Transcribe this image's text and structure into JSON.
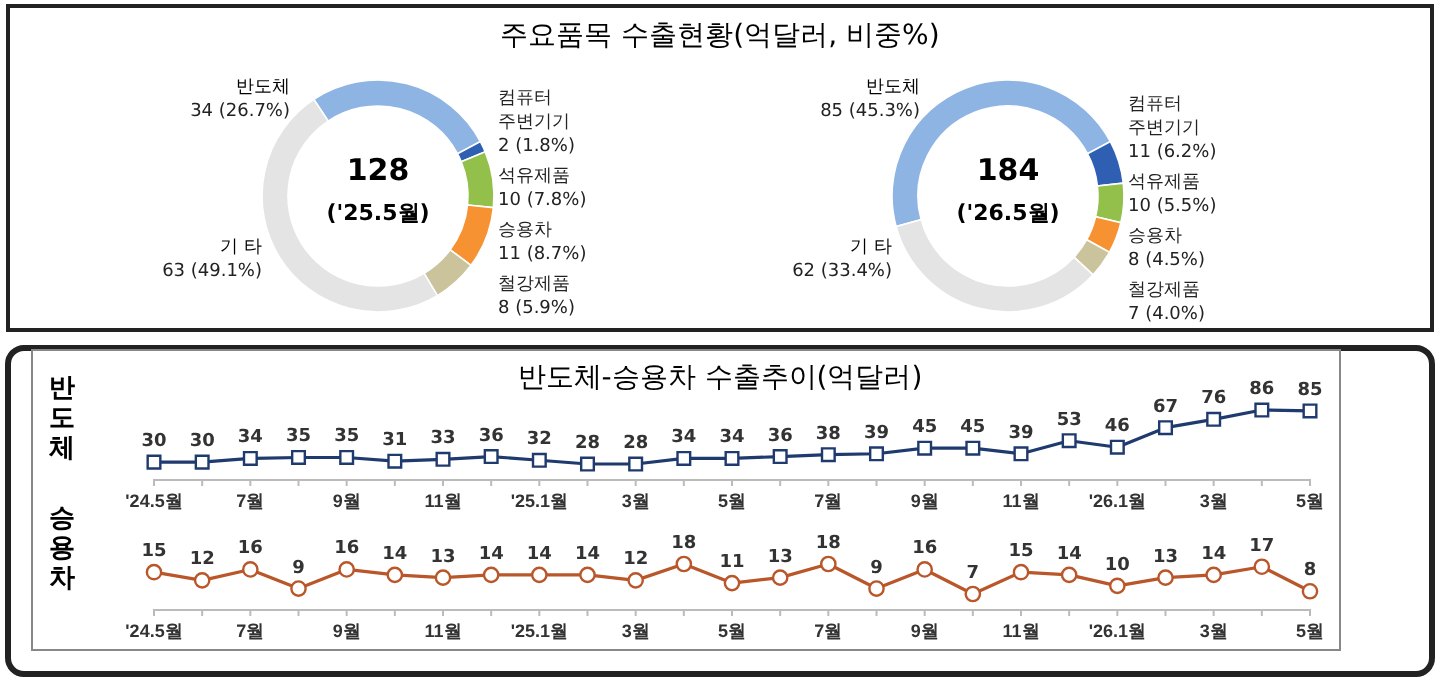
{
  "chart_data": [
    {
      "type": "donut",
      "title": "주요품목  수출현황(억달러, 비중%)",
      "categories": [
        "반도체",
        "컴퓨터 주변기기",
        "석유제품",
        "승용차",
        "철강제품",
        "기 타"
      ],
      "values": [
        34,
        2,
        10,
        11,
        8,
        63
      ],
      "value_labels": [
        "34 (26.7%)",
        "2 (1.8%)",
        "10 (7.8%)",
        "11 (8.7%)",
        "8 (5.9%)",
        "63 (49.1%)"
      ],
      "colors": [
        "#8db4e2",
        "#2f5fb3",
        "#92c04a",
        "#f79232",
        "#cbc39b",
        "#e4e4e4"
      ],
      "annotations": [
        "128",
        "('25.5월)"
      ]
    },
    {
      "type": "donut",
      "categories": [
        "반도체",
        "컴퓨터 주변기기",
        "석유제품",
        "승용차",
        "철강제품",
        "기 타"
      ],
      "values": [
        85,
        11,
        10,
        8,
        7,
        62
      ],
      "value_labels": [
        "85 (45.3%)",
        "11 (6.2%)",
        "10 (5.5%)",
        "8 (4.5%)",
        "7 (4.0%)",
        "62 (33.4%)"
      ],
      "colors": [
        "#8db4e2",
        "#2f5fb3",
        "#92c04a",
        "#f79232",
        "#cbc39b",
        "#e4e4e4"
      ],
      "annotations": [
        "184",
        "('26.5월)"
      ]
    },
    {
      "type": "line",
      "title": "반도체-승용차 수출추이(억달러)",
      "ylabel": "반도체",
      "categories": [
        "'24.5월",
        null,
        "7월",
        null,
        "9월",
        null,
        "11월",
        null,
        "'25.1월",
        null,
        "3월",
        null,
        "5월",
        null,
        "7월",
        null,
        "9월",
        null,
        "11월",
        null,
        "'26.1월",
        null,
        "3월",
        null,
        "5월"
      ],
      "marker": "square",
      "data_labels": true,
      "series": [
        {
          "color": "#1f3a6e",
          "values": [
            30,
            30,
            34,
            35,
            35,
            31,
            33,
            36,
            32,
            28,
            28,
            34,
            34,
            36,
            38,
            39,
            45,
            45,
            39,
            53,
            46,
            67,
            76,
            86,
            85
          ]
        }
      ]
    },
    {
      "type": "line",
      "ylabel": "승용차",
      "categories": [
        "'24.5월",
        null,
        "7월",
        null,
        "9월",
        null,
        "11월",
        null,
        "'25.1월",
        null,
        "3월",
        null,
        "5월",
        null,
        "7월",
        null,
        "9월",
        null,
        "11월",
        null,
        "'26.1월",
        null,
        "3월",
        null,
        "5월"
      ],
      "marker": "circle",
      "data_labels": true,
      "series": [
        {
          "color": "#b9562a",
          "values": [
            15,
            12,
            16,
            9,
            16,
            14,
            13,
            14,
            14,
            14,
            12,
            18,
            11,
            13,
            18,
            9,
            16,
            7,
            15,
            14,
            10,
            13,
            14,
            17,
            8
          ]
        }
      ]
    }
  ]
}
